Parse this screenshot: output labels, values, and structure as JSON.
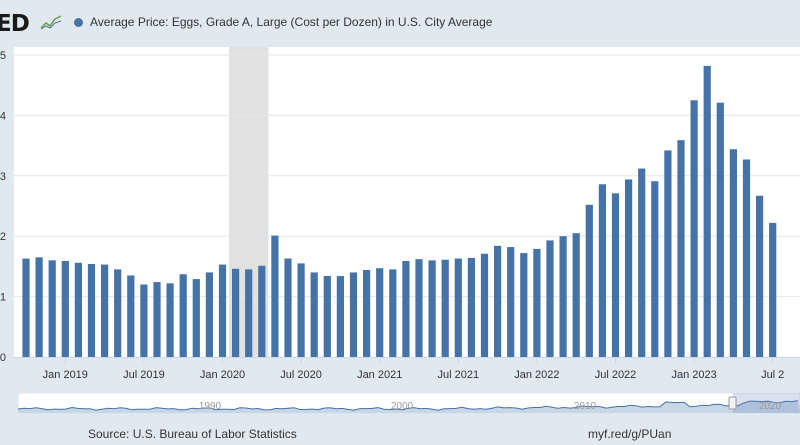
{
  "header": {
    "logo_text": "ED",
    "logo_icon": "line-chart-icon"
  },
  "chart_data": {
    "type": "bar",
    "title": "Average Price: Eggs, Grade A, Large (Cost per Dozen) in U.S. City Average",
    "series": [
      {
        "name": "Average Price: Eggs, Grade A, Large (Cost per Dozen) in U.S. City Average",
        "color": "#4572a7",
        "start": "2018-10",
        "values": [
          1.63,
          1.65,
          1.6,
          1.59,
          1.56,
          1.54,
          1.53,
          1.45,
          1.35,
          1.2,
          1.24,
          1.22,
          1.37,
          1.29,
          1.4,
          1.53,
          1.46,
          1.45,
          1.51,
          2.01,
          1.63,
          1.55,
          1.4,
          1.34,
          1.34,
          1.4,
          1.44,
          1.47,
          1.45,
          1.59,
          1.62,
          1.6,
          1.61,
          1.63,
          1.64,
          1.71,
          1.84,
          1.82,
          1.72,
          1.79,
          1.93,
          2.0,
          2.05,
          2.52,
          2.86,
          2.71,
          2.94,
          3.12,
          2.91,
          3.42,
          3.59,
          4.25,
          4.82,
          4.21,
          3.44,
          3.27,
          2.67,
          2.22
        ]
      }
    ],
    "x_tick_labels": [
      "Jan 2019",
      "Jul 2019",
      "Jan 2020",
      "Jul 2020",
      "Jan 2021",
      "Jul 2021",
      "Jan 2022",
      "Jul 2022",
      "Jan 2023",
      "Jul 2"
    ],
    "x_tick_dates": [
      "2019-01",
      "2019-07",
      "2020-01",
      "2020-07",
      "2021-01",
      "2021-07",
      "2022-01",
      "2022-07",
      "2023-01",
      "2023-07"
    ],
    "y_tick_labels": [
      "0",
      "1",
      "2",
      "3",
      "4",
      "5"
    ],
    "y_ticks": [
      0,
      1,
      2,
      3,
      4,
      5
    ],
    "ylim": [
      0,
      5
    ],
    "recession": {
      "start": "2020-02",
      "end": "2020-04",
      "color": "#e1e1e1"
    },
    "grid": true,
    "navigator": {
      "labels": [
        "1990",
        "2000",
        "2010",
        "2020"
      ]
    }
  },
  "footer": {
    "source": "Source: U.S. Bureau of Labor Statistics",
    "link": "myf.red/g/PUan"
  }
}
